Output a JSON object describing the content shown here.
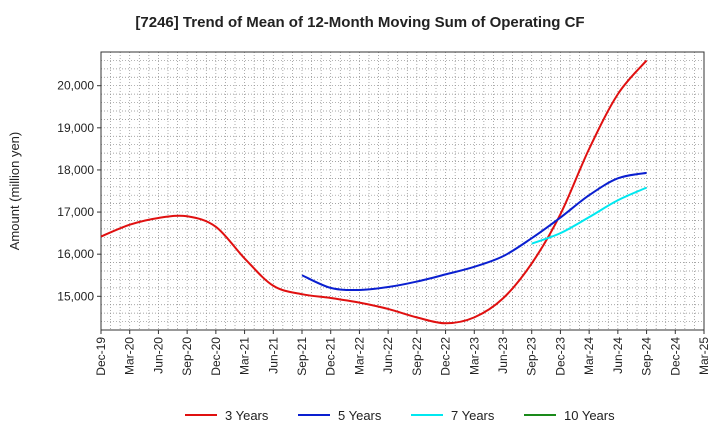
{
  "chart_data": {
    "type": "line",
    "title": "[7246]  Trend of Mean of 12-Month Moving Sum of Operating CF",
    "xlabel": "",
    "ylabel": "Amount (million yen)",
    "ylim": [
      14200,
      20800
    ],
    "yticks": [
      15000,
      16000,
      17000,
      18000,
      19000,
      20000
    ],
    "ytick_labels": [
      "15,000",
      "16,000",
      "17,000",
      "18,000",
      "19,000",
      "20,000"
    ],
    "categories": [
      "Dec-19",
      "Mar-20",
      "Jun-20",
      "Sep-20",
      "Dec-20",
      "Mar-21",
      "Jun-21",
      "Sep-21",
      "Dec-21",
      "Mar-22",
      "Jun-22",
      "Sep-22",
      "Dec-22",
      "Mar-23",
      "Jun-23",
      "Sep-23",
      "Dec-23",
      "Mar-24",
      "Jun-24",
      "Sep-24",
      "Dec-24",
      "Mar-25"
    ],
    "grid": true,
    "legend_position": "bottom",
    "series": [
      {
        "name": "3 Years",
        "color": "#e01010",
        "values": [
          16420,
          16700,
          16860,
          16900,
          16650,
          15900,
          15250,
          15050,
          14960,
          14850,
          14700,
          14500,
          14360,
          14500,
          14950,
          15780,
          16950,
          18500,
          19800,
          20600,
          null,
          null
        ]
      },
      {
        "name": "5 Years",
        "color": "#0a1fd0",
        "values": [
          null,
          null,
          null,
          null,
          null,
          null,
          null,
          15500,
          15200,
          15150,
          15220,
          15350,
          15520,
          15700,
          15950,
          16380,
          16870,
          17400,
          17800,
          17930,
          null,
          null
        ]
      },
      {
        "name": "7 Years",
        "color": "#00e8f0",
        "values": [
          null,
          null,
          null,
          null,
          null,
          null,
          null,
          null,
          null,
          null,
          null,
          null,
          null,
          null,
          null,
          16250,
          16500,
          16880,
          17280,
          17580,
          null,
          null
        ]
      },
      {
        "name": "10 Years",
        "color": "#1a8a1a",
        "values": [
          null,
          null,
          null,
          null,
          null,
          null,
          null,
          null,
          null,
          null,
          null,
          null,
          null,
          null,
          null,
          null,
          null,
          null,
          null,
          null,
          null,
          null
        ]
      }
    ]
  }
}
